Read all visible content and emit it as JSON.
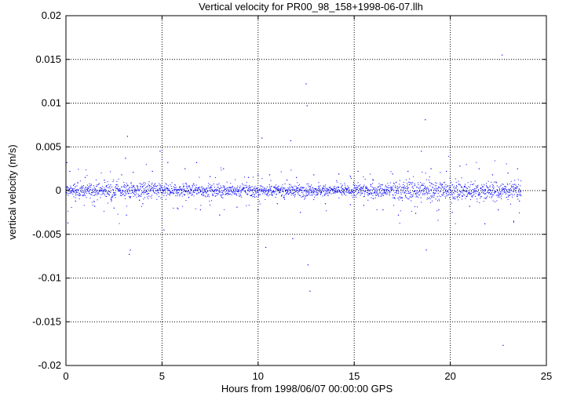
{
  "chart_data": {
    "type": "scatter",
    "title": "Vertical velocity for PR00_98_158+1998-06-07.llh",
    "xlabel": "Hours from 1998/06/07 00:00:00 GPS",
    "ylabel": "vertical velocity (m/s)",
    "xlim": [
      0,
      25
    ],
    "ylim": [
      -0.02,
      0.02
    ],
    "x_ticks": [
      0,
      5,
      10,
      15,
      20,
      25
    ],
    "y_ticks": [
      -0.02,
      -0.015,
      -0.01,
      -0.005,
      0,
      0.005,
      0.01,
      0.015,
      0.02
    ],
    "x_tick_labels": [
      "0",
      "5",
      "10",
      "15",
      "20",
      "25"
    ],
    "y_tick_labels": [
      "-0.02",
      "-0.015",
      "-0.01",
      "-0.005",
      "0",
      "0.005",
      "0.01",
      "0.015",
      "0.02"
    ],
    "grid": true,
    "grid_style": "dotted",
    "marker_color": "#0000ff",
    "series": [
      {
        "points": [
          [
            0.05,
            0.0032
          ],
          [
            0.1,
            -0.0037
          ],
          [
            0.2,
            0.0022
          ],
          [
            0.5,
            -0.0012
          ],
          [
            1.0,
            0.0015
          ],
          [
            1.5,
            -0.0018
          ],
          [
            2.0,
            0.0012
          ],
          [
            2.5,
            -0.002
          ],
          [
            2.9,
            0.0018
          ],
          [
            3.1,
            0.0037
          ],
          [
            3.15,
            -0.0028
          ],
          [
            3.2,
            0.0062
          ],
          [
            3.3,
            -0.0073
          ],
          [
            3.35,
            -0.0068
          ],
          [
            3.5,
            0.0021
          ],
          [
            4.0,
            -0.0015
          ],
          [
            4.5,
            0.0022
          ],
          [
            4.9,
            0.0045
          ],
          [
            5.0,
            -0.0032
          ],
          [
            5.1,
            -0.0045
          ],
          [
            5.3,
            0.0032
          ],
          [
            5.8,
            -0.002
          ],
          [
            6.2,
            0.0025
          ],
          [
            6.8,
            0.0032
          ],
          [
            7.0,
            -0.0022
          ],
          [
            7.5,
            0.0016
          ],
          [
            8.0,
            -0.0028
          ],
          [
            8.2,
            0.0025
          ],
          [
            8.9,
            -0.0019
          ],
          [
            9.5,
            0.0015
          ],
          [
            10.0,
            -0.0022
          ],
          [
            10.2,
            0.006
          ],
          [
            10.4,
            -0.0065
          ],
          [
            10.6,
            0.0018
          ],
          [
            11.0,
            -0.0015
          ],
          [
            11.5,
            0.0012
          ],
          [
            11.7,
            0.0057
          ],
          [
            11.8,
            -0.0055
          ],
          [
            12.0,
            0.0015
          ],
          [
            12.2,
            -0.0025
          ],
          [
            12.5,
            0.0122
          ],
          [
            12.55,
            0.0097
          ],
          [
            12.6,
            -0.0085
          ],
          [
            12.7,
            -0.0115
          ],
          [
            12.9,
            0.0018
          ],
          [
            13.5,
            -0.0015
          ],
          [
            14.2,
            0.0019
          ],
          [
            14.8,
            -0.0016
          ],
          [
            15.2,
            0.0022
          ],
          [
            15.5,
            -0.0017
          ],
          [
            16.0,
            0.0012
          ],
          [
            16.5,
            -0.0022
          ],
          [
            17.0,
            0.0019
          ],
          [
            17.3,
            -0.0028
          ],
          [
            17.8,
            0.0022
          ],
          [
            18.2,
            -0.0026
          ],
          [
            18.5,
            0.0045
          ],
          [
            18.7,
            0.0081
          ],
          [
            18.75,
            -0.0068
          ],
          [
            19.0,
            0.0025
          ],
          [
            19.4,
            -0.0022
          ],
          [
            19.8,
            0.0022
          ],
          [
            20.1,
            -0.0025
          ],
          [
            20.5,
            0.0028
          ],
          [
            21.0,
            -0.0018
          ],
          [
            21.5,
            0.0025
          ],
          [
            21.8,
            -0.0038
          ],
          [
            22.2,
            0.0018
          ],
          [
            22.5,
            -0.0022
          ],
          [
            22.7,
            0.0155
          ],
          [
            22.75,
            -0.0177
          ],
          [
            23.0,
            0.002
          ],
          [
            23.3,
            -0.0035
          ],
          [
            23.5,
            0.0025
          ],
          [
            23.6,
            -0.0012
          ]
        ],
        "dense_band": {
          "x_start": 0.0,
          "x_end": 23.7,
          "x_step": 0.01,
          "center": 0.0,
          "core_spread": 0.0008,
          "segments": [
            {
              "x_from": 0.0,
              "x_to": 2.0,
              "spread": 0.0009
            },
            {
              "x_from": 2.0,
              "x_to": 5.0,
              "spread": 0.0011
            },
            {
              "x_from": 5.0,
              "x_to": 10.0,
              "spread": 0.0008
            },
            {
              "x_from": 10.0,
              "x_to": 15.0,
              "spread": 0.0007
            },
            {
              "x_from": 15.0,
              "x_to": 17.0,
              "spread": 0.0009
            },
            {
              "x_from": 17.0,
              "x_to": 21.0,
              "spread": 0.0013
            },
            {
              "x_from": 21.0,
              "x_to": 23.7,
              "spread": 0.0011
            }
          ]
        }
      }
    ]
  }
}
